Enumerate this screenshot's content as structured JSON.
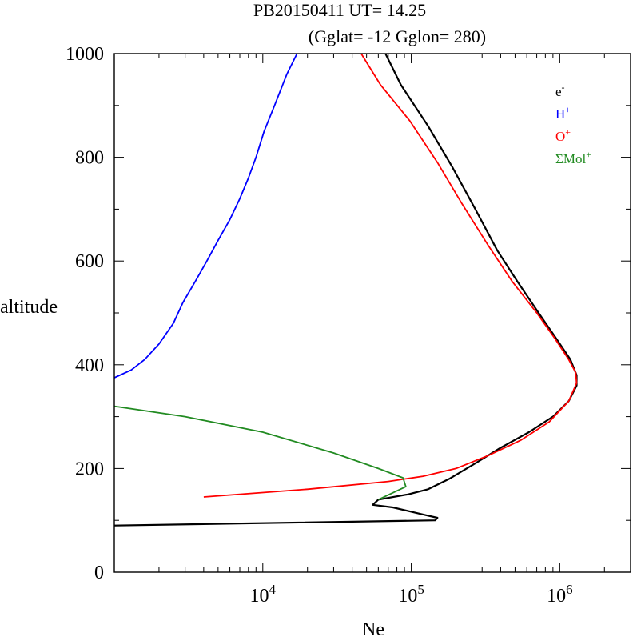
{
  "chart_data": {
    "type": "line",
    "title": "PB20150411   UT=  14.25",
    "subtitle": "(Gglat= -12   Gglon=  280)",
    "xlabel": "Ne",
    "ylabel": "altitude",
    "xscale": "log",
    "xlim": [
      1000,
      3000000
    ],
    "ylim": [
      0,
      1000
    ],
    "y_ticks": [
      0,
      200,
      400,
      600,
      800,
      1000
    ],
    "x_ticks": [
      {
        "value": 10000,
        "base": "10",
        "exp": "4"
      },
      {
        "value": 100000,
        "base": "10",
        "exp": "5"
      },
      {
        "value": 1000000,
        "base": "10",
        "exp": "6"
      }
    ],
    "grid": false,
    "legend_position": "top-right",
    "series": [
      {
        "name": "e",
        "sup": "-",
        "color": "#000000",
        "points": [
          [
            1000,
            90
          ],
          [
            145000,
            100
          ],
          [
            150000,
            105
          ],
          [
            125000,
            110
          ],
          [
            75000,
            125
          ],
          [
            55000,
            130
          ],
          [
            60000,
            140
          ],
          [
            95000,
            150
          ],
          [
            130000,
            160
          ],
          [
            180000,
            180
          ],
          [
            270000,
            210
          ],
          [
            400000,
            240
          ],
          [
            620000,
            270
          ],
          [
            900000,
            300
          ],
          [
            1150000,
            330
          ],
          [
            1300000,
            360
          ],
          [
            1300000,
            380
          ],
          [
            1180000,
            410
          ],
          [
            950000,
            450
          ],
          [
            720000,
            500
          ],
          [
            520000,
            560
          ],
          [
            380000,
            620
          ],
          [
            270000,
            700
          ],
          [
            190000,
            780
          ],
          [
            130000,
            860
          ],
          [
            85000,
            940
          ],
          [
            67000,
            1000
          ]
        ]
      },
      {
        "name": "H",
        "sup": "+",
        "color": "#0000ff",
        "points": [
          [
            1000,
            375
          ],
          [
            1300,
            390
          ],
          [
            1600,
            410
          ],
          [
            2000,
            440
          ],
          [
            2500,
            480
          ],
          [
            2900,
            520
          ],
          [
            3500,
            560
          ],
          [
            4200,
            600
          ],
          [
            5000,
            640
          ],
          [
            6000,
            680
          ],
          [
            7000,
            720
          ],
          [
            8000,
            760
          ],
          [
            9000,
            800
          ],
          [
            10200,
            850
          ],
          [
            12000,
            900
          ],
          [
            14500,
            960
          ],
          [
            17000,
            1000
          ]
        ]
      },
      {
        "name": "O",
        "sup": "+",
        "color": "#ff0000",
        "points": [
          [
            4000,
            145
          ],
          [
            20000,
            160
          ],
          [
            70000,
            175
          ],
          [
            120000,
            185
          ],
          [
            200000,
            200
          ],
          [
            330000,
            225
          ],
          [
            550000,
            255
          ],
          [
            850000,
            290
          ],
          [
            1150000,
            330
          ],
          [
            1300000,
            365
          ],
          [
            1280000,
            385
          ],
          [
            1150000,
            410
          ],
          [
            930000,
            450
          ],
          [
            700000,
            500
          ],
          [
            480000,
            560
          ],
          [
            330000,
            630
          ],
          [
            220000,
            710
          ],
          [
            150000,
            790
          ],
          [
            98000,
            870
          ],
          [
            62000,
            940
          ],
          [
            46000,
            1000
          ]
        ]
      },
      {
        "name": "ΣMol",
        "sup": "+",
        "color": "#228b22",
        "points": [
          [
            1000,
            320
          ],
          [
            3000,
            300
          ],
          [
            10000,
            270
          ],
          [
            30000,
            230
          ],
          [
            60000,
            200
          ],
          [
            88000,
            182
          ],
          [
            92000,
            165
          ],
          [
            60000,
            140
          ]
        ]
      }
    ]
  }
}
